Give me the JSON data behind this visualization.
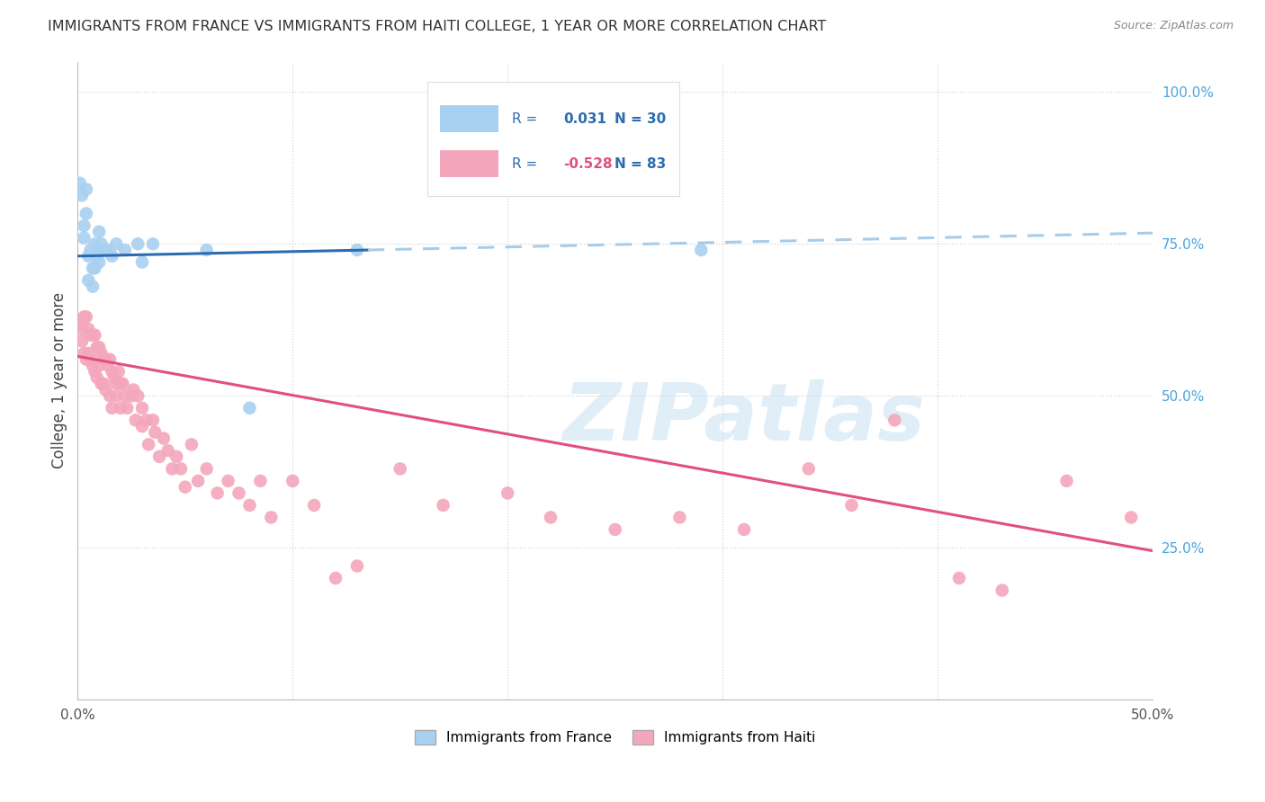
{
  "title": "IMMIGRANTS FROM FRANCE VS IMMIGRANTS FROM HAITI COLLEGE, 1 YEAR OR MORE CORRELATION CHART",
  "source": "Source: ZipAtlas.com",
  "ylabel": "College, 1 year or more",
  "x_min": 0.0,
  "x_max": 0.5,
  "y_min": 0.0,
  "y_max": 1.05,
  "france_R": 0.031,
  "france_N": 30,
  "haiti_R": -0.528,
  "haiti_N": 83,
  "france_color": "#a8d0f0",
  "haiti_color": "#f4a6bc",
  "france_line_color": "#2b6cb0",
  "haiti_line_color": "#e05080",
  "trendline_ext_color": "#a8cce8",
  "france_scatter_x": [
    0.001,
    0.002,
    0.003,
    0.003,
    0.004,
    0.004,
    0.005,
    0.005,
    0.006,
    0.007,
    0.007,
    0.008,
    0.008,
    0.009,
    0.01,
    0.01,
    0.011,
    0.012,
    0.013,
    0.014,
    0.016,
    0.018,
    0.022,
    0.028,
    0.03,
    0.035,
    0.06,
    0.08,
    0.13,
    0.29
  ],
  "france_scatter_y": [
    0.85,
    0.83,
    0.78,
    0.76,
    0.84,
    0.8,
    0.73,
    0.69,
    0.74,
    0.71,
    0.68,
    0.75,
    0.71,
    0.73,
    0.72,
    0.77,
    0.75,
    0.74,
    0.74,
    0.74,
    0.73,
    0.75,
    0.74,
    0.75,
    0.72,
    0.75,
    0.74,
    0.48,
    0.74,
    0.74
  ],
  "haiti_scatter_x": [
    0.001,
    0.002,
    0.002,
    0.003,
    0.003,
    0.004,
    0.004,
    0.005,
    0.005,
    0.006,
    0.006,
    0.007,
    0.007,
    0.008,
    0.008,
    0.009,
    0.009,
    0.01,
    0.01,
    0.011,
    0.011,
    0.012,
    0.012,
    0.013,
    0.013,
    0.014,
    0.015,
    0.015,
    0.016,
    0.016,
    0.017,
    0.018,
    0.018,
    0.019,
    0.02,
    0.02,
    0.021,
    0.022,
    0.023,
    0.025,
    0.026,
    0.027,
    0.028,
    0.03,
    0.03,
    0.032,
    0.033,
    0.035,
    0.036,
    0.038,
    0.04,
    0.042,
    0.044,
    0.046,
    0.048,
    0.05,
    0.053,
    0.056,
    0.06,
    0.065,
    0.07,
    0.075,
    0.08,
    0.085,
    0.09,
    0.1,
    0.11,
    0.12,
    0.13,
    0.15,
    0.17,
    0.2,
    0.22,
    0.25,
    0.28,
    0.31,
    0.34,
    0.36,
    0.38,
    0.41,
    0.43,
    0.46,
    0.49
  ],
  "haiti_scatter_y": [
    0.62,
    0.61,
    0.59,
    0.63,
    0.57,
    0.63,
    0.56,
    0.61,
    0.57,
    0.6,
    0.56,
    0.6,
    0.55,
    0.6,
    0.54,
    0.58,
    0.53,
    0.58,
    0.55,
    0.57,
    0.52,
    0.56,
    0.52,
    0.56,
    0.51,
    0.55,
    0.56,
    0.5,
    0.54,
    0.48,
    0.53,
    0.52,
    0.5,
    0.54,
    0.52,
    0.48,
    0.52,
    0.5,
    0.48,
    0.5,
    0.51,
    0.46,
    0.5,
    0.48,
    0.45,
    0.46,
    0.42,
    0.46,
    0.44,
    0.4,
    0.43,
    0.41,
    0.38,
    0.4,
    0.38,
    0.35,
    0.42,
    0.36,
    0.38,
    0.34,
    0.36,
    0.34,
    0.32,
    0.36,
    0.3,
    0.36,
    0.32,
    0.2,
    0.22,
    0.38,
    0.32,
    0.34,
    0.3,
    0.28,
    0.3,
    0.28,
    0.38,
    0.32,
    0.46,
    0.2,
    0.18,
    0.36,
    0.3
  ],
  "france_trendline_x0": 0.0,
  "france_trendline_y0": 0.73,
  "france_trendline_x1": 0.135,
  "france_trendline_y1": 0.74,
  "france_trendline_dash_x1": 0.5,
  "france_trendline_dash_y1": 0.768,
  "haiti_trendline_x0": 0.0,
  "haiti_trendline_y0": 0.565,
  "haiti_trendline_x1": 0.5,
  "haiti_trendline_y1": 0.245,
  "watermark": "ZIPatlas",
  "legend_france_label": "Immigrants from France",
  "legend_haiti_label": "Immigrants from Haiti",
  "background_color": "#ffffff",
  "grid_color": "#cccccc"
}
